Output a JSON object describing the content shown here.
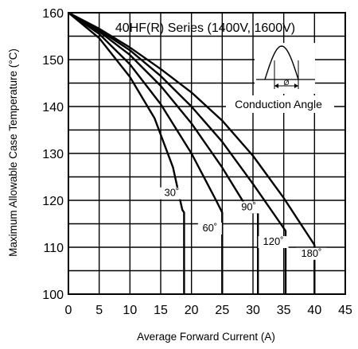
{
  "chart_data": {
    "type": "line",
    "title": "",
    "series_title": "40HF(R) Series (1400V, 1600V)",
    "xlabel": "Average Forward Current (A)",
    "ylabel": "Maximum Allowable Case Temperature (°C)",
    "xlim": [
      0,
      45
    ],
    "ylim": [
      100,
      160
    ],
    "x_ticks": [
      "0",
      "5",
      "10",
      "15",
      "20",
      "25",
      "30",
      "35",
      "40",
      "45"
    ],
    "y_ticks": [
      "100",
      "110",
      "120",
      "130",
      "140",
      "150",
      "160"
    ],
    "grid": true,
    "inset": {
      "label": "Conduction Angle",
      "symbol": "Ø"
    },
    "series": [
      {
        "name": "30˚",
        "points": [
          [
            0,
            160
          ],
          [
            5,
            154.6
          ],
          [
            10,
            146.3
          ],
          [
            14,
            137.5
          ],
          [
            17,
            127
          ],
          [
            18.5,
            118
          ],
          [
            18.8,
            117.4
          ],
          [
            18.8,
            100
          ]
        ]
      },
      {
        "name": "60˚",
        "points": [
          [
            0,
            160
          ],
          [
            5,
            155.5
          ],
          [
            10,
            149
          ],
          [
            15,
            140.5
          ],
          [
            20,
            130
          ],
          [
            24,
            120
          ],
          [
            25,
            117.4
          ],
          [
            25,
            100
          ]
        ]
      },
      {
        "name": "90˚",
        "points": [
          [
            0,
            160
          ],
          [
            5,
            156
          ],
          [
            10,
            151
          ],
          [
            15,
            144.4
          ],
          [
            20,
            136.4
          ],
          [
            25,
            127
          ],
          [
            29.5,
            117.4
          ],
          [
            30.8,
            117.4
          ],
          [
            30.8,
            100
          ]
        ]
      },
      {
        "name": "120˚",
        "points": [
          [
            0,
            160
          ],
          [
            5,
            156.3
          ],
          [
            10,
            152
          ],
          [
            15,
            146.5
          ],
          [
            20,
            140
          ],
          [
            25,
            132.5
          ],
          [
            30,
            123.5
          ],
          [
            34.5,
            115
          ],
          [
            35.3,
            113.5
          ],
          [
            35.3,
            100
          ]
        ]
      },
      {
        "name": "180˚",
        "points": [
          [
            0,
            160
          ],
          [
            5,
            156.6
          ],
          [
            10,
            152.6
          ],
          [
            15,
            148
          ],
          [
            20,
            143
          ],
          [
            25,
            137
          ],
          [
            30,
            129.5
          ],
          [
            35,
            120.5
          ],
          [
            38.5,
            113.5
          ],
          [
            40,
            110.5
          ],
          [
            40,
            100
          ]
        ]
      }
    ]
  }
}
